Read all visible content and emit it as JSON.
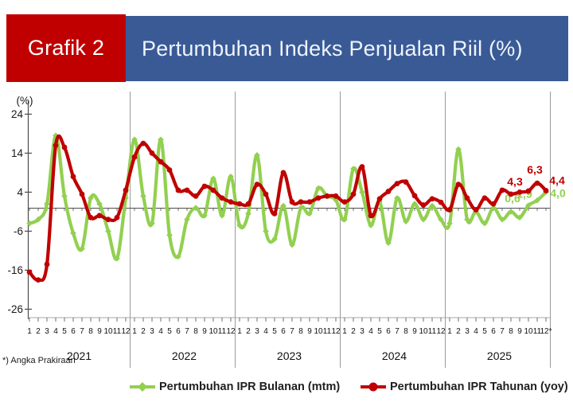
{
  "header": {
    "tag": "Grafik 2",
    "title": "Pertumbuhan Indeks Penjualan Riil (%)"
  },
  "footnote": "*) Angka Prakiraan",
  "colors": {
    "header_red": "#c00000",
    "header_blue": "#3a5a96",
    "header_text": "#eef4fb",
    "mtm_green": "#92d050",
    "yoy_red": "#c00000",
    "axis_gray": "#4d4d4d"
  },
  "legend": [
    {
      "label": "Pertumbuhan IPR Bulanan (mtm)",
      "color": "#92d050"
    },
    {
      "label": "Pertumbuhan IPR Tahunan (yoy)",
      "color": "#c00000"
    }
  ],
  "chart_data": {
    "type": "line",
    "unit_label": "(%)",
    "y_ticks": [
      24,
      14,
      4,
      -6,
      -16,
      -26
    ],
    "ylim": [
      -26,
      24
    ],
    "grid": "off",
    "legend_position": "bottom",
    "years": [
      "2021",
      "2022",
      "2023",
      "2024",
      "2025"
    ],
    "months_per_year": [
      "1",
      "2",
      "3",
      "4",
      "5",
      "6",
      "7",
      "8",
      "9",
      "10",
      "11",
      "12"
    ],
    "last_month_label": "12*",
    "series": [
      {
        "name": "Pertumbuhan IPR Bulanan (mtm)",
        "short": "mtm",
        "color": "#92d050",
        "marker": "diamond",
        "values": [
          -4,
          -3,
          1,
          18.5,
          3,
          -6.5,
          -10.5,
          2.5,
          1,
          -6,
          -13,
          2.5,
          17.5,
          3,
          -4,
          17.5,
          -7,
          -12.5,
          -3,
          0,
          -2,
          7.5,
          -2,
          8,
          -4.5,
          -1.5,
          13.5,
          -6,
          -8,
          0.5,
          -9.5,
          0,
          -1.5,
          5,
          3,
          2,
          -3,
          10,
          4,
          -4.5,
          1.5,
          -9,
          2.5,
          -3.5,
          1,
          -3,
          0.5,
          -3,
          -4,
          15,
          -3,
          -1,
          -4,
          0,
          -3,
          -1,
          -2.5,
          0.6,
          1.9,
          4
        ]
      },
      {
        "name": "Pertumbuhan IPR Tahunan (yoy)",
        "short": "yoy",
        "color": "#c00000",
        "marker": "circle",
        "values": [
          -16.5,
          -18.5,
          -14.5,
          16,
          15.5,
          8,
          3.5,
          -2.5,
          -2,
          -3,
          -2.5,
          4.5,
          13,
          16.5,
          14,
          11.8,
          9.7,
          4.5,
          4.5,
          3,
          5.5,
          4.5,
          2.5,
          1.5,
          1,
          1,
          6,
          3.5,
          -1.5,
          9,
          1.5,
          1.5,
          1.5,
          2.5,
          3,
          3,
          1.5,
          3.5,
          10.5,
          -2,
          2.3,
          4.2,
          6.2,
          6.6,
          3.1,
          0.7,
          2.3,
          1.4,
          -0.5,
          6,
          2.5,
          -0.5,
          2.5,
          1,
          4.5,
          3.5,
          4,
          4.3,
          6.3,
          4.4
        ]
      }
    ],
    "end_labels": {
      "mtm": [
        "0,6",
        "1,9",
        "4,0"
      ],
      "yoy": [
        "4,3",
        "6,3",
        "4,4"
      ]
    }
  }
}
